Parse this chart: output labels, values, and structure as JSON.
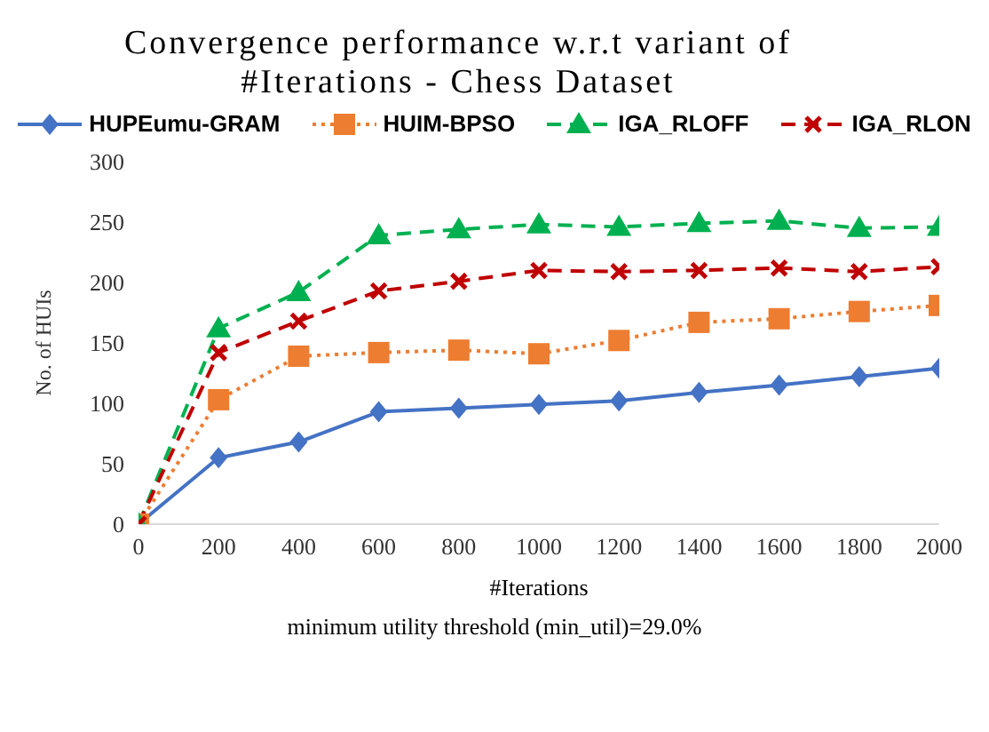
{
  "chart_data": {
    "type": "line",
    "title": "Convergence performance w.r.t variant of #Iterations - Chess Dataset",
    "xlabel": "#Iterations",
    "ylabel": "No. of HUIs",
    "annotations": [
      "minimum utility threshold (min_util)=29.0%"
    ],
    "x": [
      0,
      200,
      400,
      600,
      800,
      1000,
      1200,
      1400,
      1600,
      1800,
      2000
    ],
    "xlim": [
      0,
      2000
    ],
    "xticks": [
      0,
      200,
      400,
      600,
      800,
      1000,
      1200,
      1400,
      1600,
      1800,
      2000
    ],
    "ylim": [
      0,
      300
    ],
    "yticks": [
      0,
      50,
      100,
      150,
      200,
      250,
      300
    ],
    "grid": false,
    "legend": "top",
    "series": [
      {
        "name": "HUPEumu-GRAM",
        "color": "#4472c4",
        "marker": "diamond",
        "line_style": "solid",
        "values": [
          0,
          55,
          68,
          93,
          96,
          99,
          102,
          109,
          115,
          122,
          129
        ]
      },
      {
        "name": "HUIM-BPSO",
        "color": "#ed7d31",
        "marker": "square",
        "line_style": "dotted",
        "values": [
          0,
          103,
          139,
          142,
          144,
          141,
          152,
          167,
          170,
          176,
          181
        ]
      },
      {
        "name": "IGA_RLOFF",
        "color": "#00b050",
        "marker": "triangle",
        "line_style": "dashed",
        "values": [
          0,
          162,
          192,
          239,
          244,
          248,
          246,
          249,
          251,
          245,
          246
        ]
      },
      {
        "name": "IGA_RLON",
        "color": "#c00000",
        "marker": "cross",
        "line_style": "dashed",
        "values": [
          0,
          142,
          168,
          193,
          201,
          210,
          209,
          210,
          212,
          209,
          213
        ]
      }
    ]
  }
}
